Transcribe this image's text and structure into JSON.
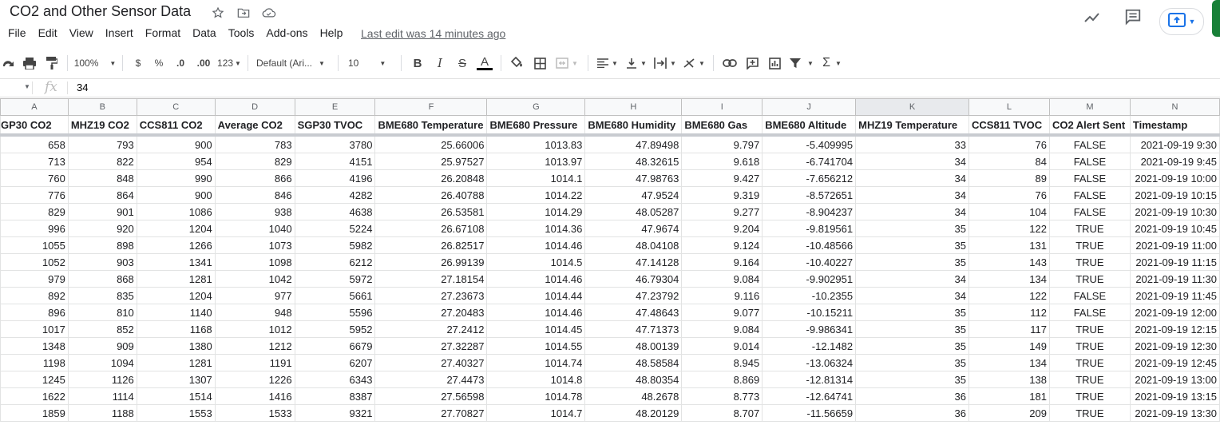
{
  "title": "CO2 and Other Sensor Data",
  "menu": [
    "File",
    "Edit",
    "View",
    "Insert",
    "Format",
    "Data",
    "Tools",
    "Add-ons",
    "Help"
  ],
  "last_edit": "Last edit was 14 minutes ago",
  "toolbar": {
    "zoom": "100%",
    "currency": "$",
    "percent": "%",
    "dec_decrease": ".0",
    "dec_increase": ".00",
    "more_formats": "123",
    "font": "Default (Ari...",
    "font_size": "10",
    "bold": "B",
    "italic": "I",
    "strike": "S",
    "text_color": "A"
  },
  "formula_bar": {
    "fx": "fx",
    "value": "34"
  },
  "columns": [
    "A",
    "B",
    "C",
    "D",
    "E",
    "F",
    "G",
    "H",
    "I",
    "J",
    "K",
    "L",
    "M",
    "N"
  ],
  "selected_column": "K",
  "headers": [
    "GP30 CO2",
    "MHZ19 CO2",
    "CCS811 CO2",
    "Average CO2",
    "SGP30 TVOC",
    "BME680 Temperature",
    "BME680 Pressure",
    "BME680 Humidity",
    "BME680 Gas",
    "BME680 Altitude",
    "MHZ19 Temperature",
    "CCS811 TVOC",
    "CO2 Alert Sent",
    "Timestamp"
  ],
  "rows": [
    [
      "658",
      "793",
      "900",
      "783",
      "3780",
      "25.66006",
      "1013.83",
      "47.89498",
      "9.797",
      "-5.409995",
      "33",
      "76",
      "FALSE",
      "2021-09-19 9:30"
    ],
    [
      "713",
      "822",
      "954",
      "829",
      "4151",
      "25.97527",
      "1013.97",
      "48.32615",
      "9.618",
      "-6.741704",
      "34",
      "84",
      "FALSE",
      "2021-09-19 9:45"
    ],
    [
      "760",
      "848",
      "990",
      "866",
      "4196",
      "26.20848",
      "1014.1",
      "47.98763",
      "9.427",
      "-7.656212",
      "34",
      "89",
      "FALSE",
      "2021-09-19 10:00"
    ],
    [
      "776",
      "864",
      "900",
      "846",
      "4282",
      "26.40788",
      "1014.22",
      "47.9524",
      "9.319",
      "-8.572651",
      "34",
      "76",
      "FALSE",
      "2021-09-19 10:15"
    ],
    [
      "829",
      "901",
      "1086",
      "938",
      "4638",
      "26.53581",
      "1014.29",
      "48.05287",
      "9.277",
      "-8.904237",
      "34",
      "104",
      "FALSE",
      "2021-09-19 10:30"
    ],
    [
      "996",
      "920",
      "1204",
      "1040",
      "5224",
      "26.67108",
      "1014.36",
      "47.9674",
      "9.204",
      "-9.819561",
      "35",
      "122",
      "TRUE",
      "2021-09-19 10:45"
    ],
    [
      "1055",
      "898",
      "1266",
      "1073",
      "5982",
      "26.82517",
      "1014.46",
      "48.04108",
      "9.124",
      "-10.48566",
      "35",
      "131",
      "TRUE",
      "2021-09-19 11:00"
    ],
    [
      "1052",
      "903",
      "1341",
      "1098",
      "6212",
      "26.99139",
      "1014.5",
      "47.14128",
      "9.164",
      "-10.40227",
      "35",
      "143",
      "TRUE",
      "2021-09-19 11:15"
    ],
    [
      "979",
      "868",
      "1281",
      "1042",
      "5972",
      "27.18154",
      "1014.46",
      "46.79304",
      "9.084",
      "-9.902951",
      "34",
      "134",
      "TRUE",
      "2021-09-19 11:30"
    ],
    [
      "892",
      "835",
      "1204",
      "977",
      "5661",
      "27.23673",
      "1014.44",
      "47.23792",
      "9.116",
      "-10.2355",
      "34",
      "122",
      "FALSE",
      "2021-09-19 11:45"
    ],
    [
      "896",
      "810",
      "1140",
      "948",
      "5596",
      "27.20483",
      "1014.46",
      "47.48643",
      "9.077",
      "-10.15211",
      "35",
      "112",
      "FALSE",
      "2021-09-19 12:00"
    ],
    [
      "1017",
      "852",
      "1168",
      "1012",
      "5952",
      "27.2412",
      "1014.45",
      "47.71373",
      "9.084",
      "-9.986341",
      "35",
      "117",
      "TRUE",
      "2021-09-19 12:15"
    ],
    [
      "1348",
      "909",
      "1380",
      "1212",
      "6679",
      "27.32287",
      "1014.55",
      "48.00139",
      "9.014",
      "-12.1482",
      "35",
      "149",
      "TRUE",
      "2021-09-19 12:30"
    ],
    [
      "1198",
      "1094",
      "1281",
      "1191",
      "6207",
      "27.40327",
      "1014.74",
      "48.58584",
      "8.945",
      "-13.06324",
      "35",
      "134",
      "TRUE",
      "2021-09-19 12:45"
    ],
    [
      "1245",
      "1126",
      "1307",
      "1226",
      "6343",
      "27.4473",
      "1014.8",
      "48.80354",
      "8.869",
      "-12.81314",
      "35",
      "138",
      "TRUE",
      "2021-09-19 13:00"
    ],
    [
      "1622",
      "1114",
      "1514",
      "1416",
      "8387",
      "27.56598",
      "1014.78",
      "48.2678",
      "8.773",
      "-12.64741",
      "36",
      "181",
      "TRUE",
      "2021-09-19 13:15"
    ],
    [
      "1859",
      "1188",
      "1553",
      "1533",
      "9321",
      "27.70827",
      "1014.7",
      "48.20129",
      "8.707",
      "-11.56659",
      "36",
      "209",
      "TRUE",
      "2021-09-19 13:30"
    ]
  ]
}
